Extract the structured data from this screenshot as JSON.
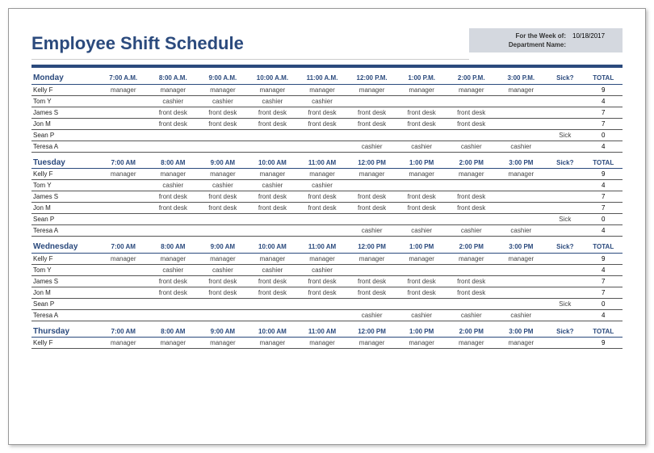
{
  "title": "Employee Shift Schedule",
  "meta": {
    "week_label": "For the Week of:",
    "week_value": "10/18/2017",
    "dept_label": "Department Name:",
    "dept_value": ""
  },
  "colors": {
    "accent": "#2b4a7d",
    "meta_bg": "#d4d8df",
    "grid": "#555555",
    "text": "#333333"
  },
  "time_headers_ampm_dots": [
    "7:00 A.M.",
    "8:00 A.M.",
    "9:00 A.M.",
    "10:00 A.M.",
    "11:00 A.M.",
    "12:00 P.M.",
    "1:00 P.M.",
    "2:00 P.M.",
    "3:00 P.M."
  ],
  "time_headers_ampm": [
    "7:00 AM",
    "8:00 AM",
    "9:00 AM",
    "10:00 AM",
    "11:00 AM",
    "12:00 PM",
    "1:00 PM",
    "2:00 PM",
    "3:00 PM"
  ],
  "sick_label": "Sick?",
  "total_label": "TOTAL",
  "days": [
    {
      "name": "Monday",
      "header_style": "dots",
      "rows": [
        {
          "name": "Kelly F",
          "cells": [
            "manager",
            "manager",
            "manager",
            "manager",
            "manager",
            "manager",
            "manager",
            "manager",
            "manager"
          ],
          "sick": "",
          "total": "9"
        },
        {
          "name": "Tom Y",
          "cells": [
            "",
            "cashier",
            "cashier",
            "cashier",
            "cashier",
            "",
            "",
            "",
            ""
          ],
          "sick": "",
          "total": "4"
        },
        {
          "name": "James S",
          "cells": [
            "",
            "front desk",
            "front desk",
            "front desk",
            "front desk",
            "front desk",
            "front desk",
            "front desk",
            ""
          ],
          "sick": "",
          "total": "7"
        },
        {
          "name": "Jon M",
          "cells": [
            "",
            "front desk",
            "front desk",
            "front desk",
            "front desk",
            "front desk",
            "front desk",
            "front desk",
            ""
          ],
          "sick": "",
          "total": "7"
        },
        {
          "name": "Sean P",
          "cells": [
            "",
            "",
            "",
            "",
            "",
            "",
            "",
            "",
            ""
          ],
          "sick": "Sick",
          "total": "0"
        },
        {
          "name": "Teresa A",
          "cells": [
            "",
            "",
            "",
            "",
            "",
            "cashier",
            "cashier",
            "cashier",
            "cashier"
          ],
          "sick": "",
          "total": "4"
        }
      ]
    },
    {
      "name": "Tuesday",
      "header_style": "plain",
      "rows": [
        {
          "name": "Kelly F",
          "cells": [
            "manager",
            "manager",
            "manager",
            "manager",
            "manager",
            "manager",
            "manager",
            "manager",
            "manager"
          ],
          "sick": "",
          "total": "9"
        },
        {
          "name": "Tom Y",
          "cells": [
            "",
            "cashier",
            "cashier",
            "cashier",
            "cashier",
            "",
            "",
            "",
            ""
          ],
          "sick": "",
          "total": "4"
        },
        {
          "name": "James S",
          "cells": [
            "",
            "front desk",
            "front desk",
            "front desk",
            "front desk",
            "front desk",
            "front desk",
            "front desk",
            ""
          ],
          "sick": "",
          "total": "7"
        },
        {
          "name": "Jon M",
          "cells": [
            "",
            "front desk",
            "front desk",
            "front desk",
            "front desk",
            "front desk",
            "front desk",
            "front desk",
            ""
          ],
          "sick": "",
          "total": "7"
        },
        {
          "name": "Sean P",
          "cells": [
            "",
            "",
            "",
            "",
            "",
            "",
            "",
            "",
            ""
          ],
          "sick": "Sick",
          "total": "0"
        },
        {
          "name": "Teresa A",
          "cells": [
            "",
            "",
            "",
            "",
            "",
            "cashier",
            "cashier",
            "cashier",
            "cashier"
          ],
          "sick": "",
          "total": "4"
        }
      ]
    },
    {
      "name": "Wednesday",
      "header_style": "plain",
      "rows": [
        {
          "name": "Kelly F",
          "cells": [
            "manager",
            "manager",
            "manager",
            "manager",
            "manager",
            "manager",
            "manager",
            "manager",
            "manager"
          ],
          "sick": "",
          "total": "9"
        },
        {
          "name": "Tom Y",
          "cells": [
            "",
            "cashier",
            "cashier",
            "cashier",
            "cashier",
            "",
            "",
            "",
            ""
          ],
          "sick": "",
          "total": "4"
        },
        {
          "name": "James S",
          "cells": [
            "",
            "front desk",
            "front desk",
            "front desk",
            "front desk",
            "front desk",
            "front desk",
            "front desk",
            ""
          ],
          "sick": "",
          "total": "7"
        },
        {
          "name": "Jon M",
          "cells": [
            "",
            "front desk",
            "front desk",
            "front desk",
            "front desk",
            "front desk",
            "front desk",
            "front desk",
            ""
          ],
          "sick": "",
          "total": "7"
        },
        {
          "name": "Sean P",
          "cells": [
            "",
            "",
            "",
            "",
            "",
            "",
            "",
            "",
            ""
          ],
          "sick": "Sick",
          "total": "0"
        },
        {
          "name": "Teresa A",
          "cells": [
            "",
            "",
            "",
            "",
            "",
            "cashier",
            "cashier",
            "cashier",
            "cashier"
          ],
          "sick": "",
          "total": "4"
        }
      ]
    },
    {
      "name": "Thursday",
      "header_style": "plain",
      "rows": [
        {
          "name": "Kelly F",
          "cells": [
            "manager",
            "manager",
            "manager",
            "manager",
            "manager",
            "manager",
            "manager",
            "manager",
            "manager"
          ],
          "sick": "",
          "total": "9"
        }
      ]
    }
  ]
}
